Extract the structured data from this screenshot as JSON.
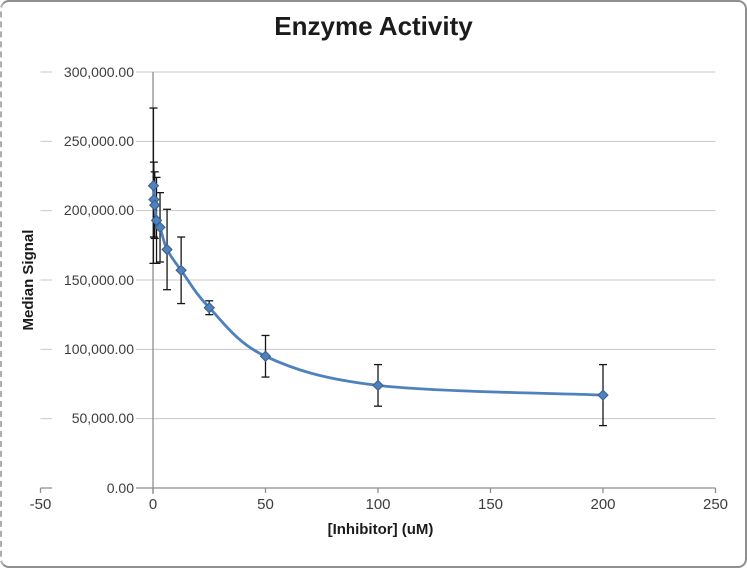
{
  "chart_data": {
    "type": "scatter",
    "title": "Enzyme Activity",
    "xlabel": "[Inhibitor] (uM)",
    "ylabel": "Median Signal",
    "xlim": [
      -50,
      250
    ],
    "ylim": [
      0,
      300000
    ],
    "x_ticks": [
      -50,
      0,
      50,
      100,
      150,
      200,
      250
    ],
    "x_tick_labels": [
      "-50",
      "0",
      "50",
      "100",
      "150",
      "200",
      "250"
    ],
    "y_ticks": [
      0,
      50000,
      100000,
      150000,
      200000,
      250000,
      300000
    ],
    "y_tick_labels": [
      "0.00",
      "50,000.00",
      "100,000.00",
      "150,000.00",
      "200,000.00",
      "250,000.00",
      "300,000.00"
    ],
    "grid": "horizontal-only",
    "legend_position": "none",
    "style": {
      "series_color": "#4F81BD",
      "marker": "diamond",
      "marker_border_color": "#385D8A",
      "error_bar_color": "#161616",
      "gridline_color": "#c9c9c9",
      "axis_color": "#8e8e8e",
      "smooth_line": true,
      "background": "#ffffff"
    },
    "series": [
      {
        "name": "Median Signal",
        "x": [
          0.195,
          0.39,
          0.78,
          1.5625,
          3.125,
          6.25,
          12.5,
          25,
          50,
          100,
          200
        ],
        "y": [
          218000,
          208000,
          204000,
          193000,
          188000,
          172000,
          157000,
          130000,
          95000,
          74000,
          67000
        ],
        "y_error": [
          56000,
          27000,
          24000,
          31000,
          25000,
          29000,
          24000,
          5000,
          15000,
          15000,
          22000
        ]
      }
    ]
  }
}
